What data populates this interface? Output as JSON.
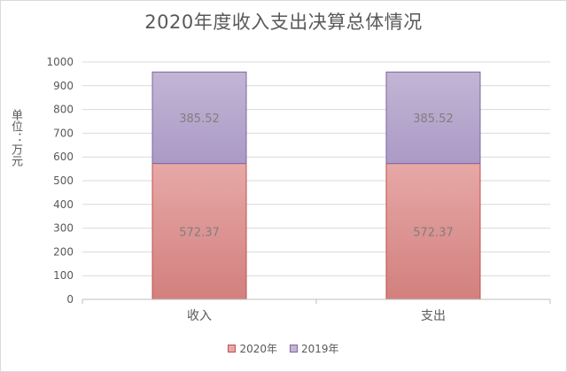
{
  "chart_data": {
    "type": "bar",
    "stacked": true,
    "title": "2020年度收入支出决算总体情况",
    "ylabel": "单位：万元",
    "xlabel": "",
    "categories": [
      "收入",
      "支出"
    ],
    "ylim": [
      0,
      1000
    ],
    "yticks": [
      0,
      100,
      200,
      300,
      400,
      500,
      600,
      700,
      800,
      900,
      1000
    ],
    "grid": true,
    "legend_position": "bottom",
    "series": [
      {
        "name": "2020年",
        "values": [
          572.37,
          572.37
        ],
        "labels": [
          "572.37",
          "572.37"
        ],
        "color": "#e6a8a6",
        "color_dark": "#d2807e",
        "border": "#c0504d"
      },
      {
        "name": "2019年",
        "values": [
          385.52,
          385.52
        ],
        "labels": [
          "385.52",
          "385.52"
        ],
        "color": "#c2b5d4",
        "color_dark": "#ab9ac6",
        "border": "#8064a2"
      }
    ]
  }
}
